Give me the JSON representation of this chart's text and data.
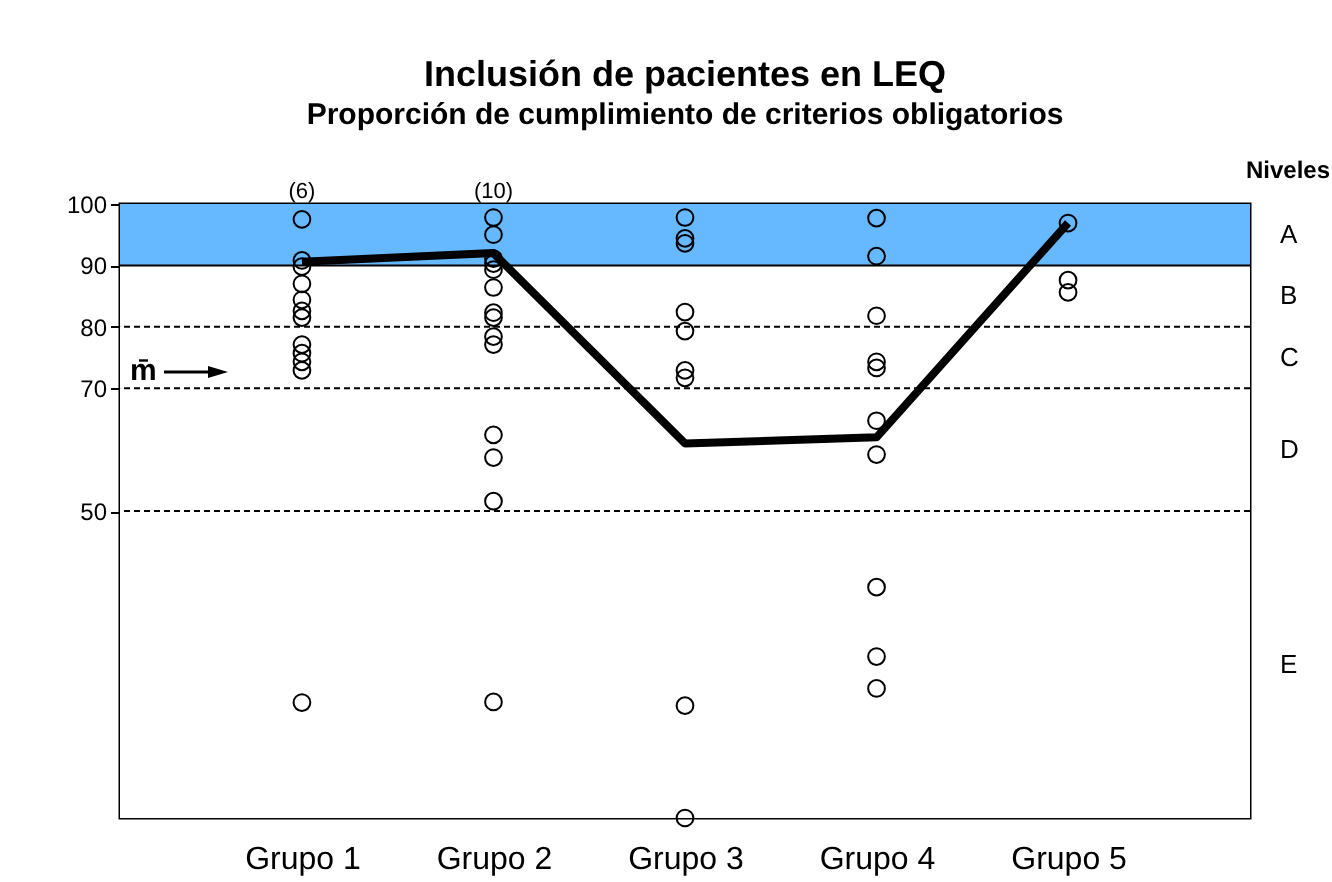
{
  "chart_data": {
    "type": "scatter",
    "title": "Inclusión de pacientes en LEQ",
    "subtitle": "Proporción de cumplimiento de criterios obligatorios",
    "categories": [
      "Grupo 1",
      "Grupo 2",
      "Grupo 3",
      "Grupo 4",
      "Grupo 5"
    ],
    "ylim": [
      0,
      100
    ],
    "yticks": [
      50,
      70,
      80,
      90,
      100
    ],
    "series": [
      {
        "color": "#000000",
        "marker": "circle",
        "x": [
          "Grupo 1",
          "Grupo 1",
          "Grupo 1",
          "Grupo 1",
          "Grupo 1",
          "Grupo 1",
          "Grupo 1",
          "Grupo 1",
          "Grupo 1",
          "Grupo 1",
          "Grupo 1",
          "Grupo 1",
          "Grupo 2",
          "Grupo 2",
          "Grupo 2",
          "Grupo 2",
          "Grupo 2",
          "Grupo 2",
          "Grupo 2",
          "Grupo 2",
          "Grupo 2",
          "Grupo 2",
          "Grupo 2",
          "Grupo 2",
          "Grupo 2",
          "Grupo 2",
          "Grupo 3",
          "Grupo 3",
          "Grupo 3",
          "Grupo 3",
          "Grupo 3",
          "Grupo 3",
          "Grupo 3",
          "Grupo 3",
          "Grupo 3",
          "Grupo 4",
          "Grupo 4",
          "Grupo 4",
          "Grupo 4",
          "Grupo 4",
          "Grupo 4",
          "Grupo 4",
          "Grupo 4",
          "Grupo 4",
          "Grupo 4",
          "Grupo 5",
          "Grupo 5",
          "Grupo 5"
        ],
        "values": [
          97.5,
          90.8,
          89.8,
          87,
          84.4,
          82.6,
          81.5,
          77.1,
          75.7,
          74.3,
          72.9,
          18.8,
          97.8,
          95,
          91.1,
          90.3,
          89.3,
          86.4,
          82.3,
          81.5,
          78.4,
          77.1,
          62.4,
          58.7,
          51.6,
          18.9,
          97.8,
          94.4,
          93.6,
          82.4,
          79.3,
          72.9,
          71.7,
          18.3,
          0,
          97.7,
          91.5,
          81.8,
          74.3,
          73.3,
          64.7,
          59.2,
          37.6,
          26.3,
          21.1,
          96.9,
          87.6,
          85.6
        ]
      },
      {
        "type": "line",
        "color": "#000000",
        "marker": "none",
        "line_style": "solid",
        "values": [
          90.6,
          92,
          61,
          62,
          96.9
        ]
      }
    ],
    "bands": [
      {
        "axis": "y",
        "from": 90,
        "to": 100,
        "label": "A",
        "color": "#66b8ff"
      },
      {
        "axis": "y",
        "from": 80,
        "to": 90,
        "label": "B",
        "color": "#ffffff"
      },
      {
        "axis": "y",
        "from": 70,
        "to": 80,
        "label": "C",
        "color": "#ffffff"
      },
      {
        "axis": "y",
        "from": 50,
        "to": 70,
        "label": "D",
        "color": "#ffffff"
      },
      {
        "axis": "y",
        "from": 0,
        "to": 50,
        "label": "E",
        "color": "#ffffff"
      }
    ],
    "ref_lines": [
      {
        "axis": "y",
        "value": 90,
        "line_style": "solid",
        "color": "#000000"
      },
      {
        "axis": "y",
        "value": 80,
        "line_style": "dashed",
        "color": "#000000"
      },
      {
        "axis": "y",
        "value": 70,
        "line_style": "dashed",
        "color": "#000000"
      },
      {
        "axis": "y",
        "value": 50,
        "line_style": "dashed",
        "color": "#000000"
      }
    ],
    "annotations": [
      "Niveles",
      {
        "text": "(6)",
        "x": "Grupo 1",
        "y": 100
      },
      {
        "text": "(10)",
        "x": "Grupo 2",
        "y": 100
      },
      "m̄"
    ]
  }
}
